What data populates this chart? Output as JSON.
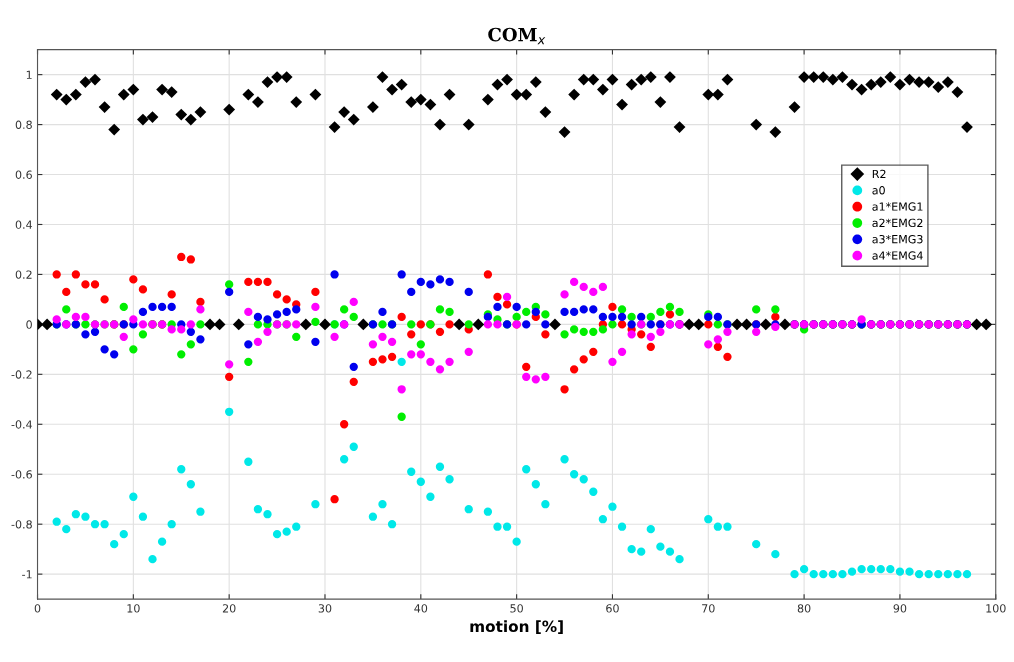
{
  "chart_data": {
    "type": "scatter",
    "title": "COM$_{x}$",
    "xlabel": "motion [%]",
    "x": [
      0,
      1,
      2,
      3,
      4,
      5,
      6,
      7,
      8,
      9,
      10,
      11,
      12,
      13,
      14,
      15,
      16,
      17,
      18,
      19,
      20,
      21,
      22,
      23,
      24,
      25,
      26,
      27,
      28,
      29,
      30,
      31,
      32,
      33,
      34,
      35,
      36,
      37,
      38,
      39,
      40,
      41,
      42,
      43,
      44,
      45,
      46,
      47,
      48,
      49,
      50,
      51,
      52,
      53,
      54,
      55,
      56,
      57,
      58,
      59,
      60,
      61,
      62,
      63,
      64,
      65,
      66,
      67,
      68,
      69,
      70,
      71,
      72,
      73,
      74,
      75,
      76,
      77,
      78,
      79,
      80,
      81,
      82,
      83,
      84,
      85,
      86,
      87,
      88,
      89,
      90,
      91,
      92,
      93,
      94,
      95,
      96,
      97,
      98,
      99
    ],
    "series": [
      {
        "name": "R2",
        "color": "#000000",
        "marker": "diamond",
        "values": [
          0,
          0,
          0.92,
          0.9,
          0.92,
          0.97,
          0.98,
          0.87,
          0.78,
          0.92,
          0.94,
          0.82,
          0.83,
          0.94,
          0.93,
          0.84,
          0.82,
          0.85,
          0,
          0,
          0.86,
          0,
          0.92,
          0.89,
          0.97,
          0.99,
          0.99,
          0.89,
          0,
          0.92,
          0,
          0.79,
          0.85,
          0.82,
          0,
          0.87,
          0.99,
          0.94,
          0.96,
          0.89,
          0.9,
          0.88,
          0.8,
          0.92,
          0,
          0.8,
          0,
          0.9,
          0.96,
          0.98,
          0.92,
          0.92,
          0.97,
          0.85,
          0,
          0.77,
          0.92,
          0.98,
          0.98,
          0.94,
          0.98,
          0.88,
          0.96,
          0.98,
          0.99,
          0.89,
          0.99,
          0.79,
          0,
          0,
          0.92,
          0.92,
          0.98,
          0,
          0,
          0.8,
          0,
          0.77,
          0,
          0.87,
          0.99,
          0.99,
          0.99,
          0.98,
          0.99,
          0.96,
          0.94,
          0.96,
          0.97,
          0.99,
          0.96,
          0.98,
          0.97,
          0.97,
          0.95,
          0.97,
          0.93,
          0.79,
          0,
          0
        ]
      },
      {
        "name": "a0",
        "color": "#00e8e8",
        "marker": "circle",
        "values": [
          null,
          null,
          -0.79,
          -0.82,
          -0.76,
          -0.77,
          -0.8,
          -0.8,
          -0.88,
          -0.84,
          -0.69,
          -0.77,
          -0.94,
          -0.87,
          -0.8,
          -0.58,
          -0.64,
          -0.75,
          null,
          null,
          -0.35,
          null,
          -0.55,
          -0.74,
          -0.76,
          -0.84,
          -0.83,
          -0.81,
          null,
          -0.72,
          null,
          0,
          -0.54,
          -0.49,
          null,
          -0.77,
          -0.72,
          -0.8,
          -0.15,
          -0.59,
          -0.63,
          -0.69,
          -0.57,
          -0.62,
          null,
          -0.74,
          null,
          -0.75,
          -0.81,
          -0.81,
          -0.87,
          -0.58,
          -0.64,
          -0.72,
          null,
          -0.54,
          -0.6,
          -0.62,
          -0.67,
          -0.78,
          -0.73,
          -0.81,
          -0.9,
          -0.91,
          -0.82,
          -0.89,
          -0.91,
          -0.94,
          null,
          null,
          -0.78,
          -0.81,
          -0.81,
          null,
          null,
          -0.88,
          null,
          -0.92,
          null,
          -1.0,
          -0.98,
          -1.0,
          -1.0,
          -1.0,
          -1.0,
          -0.99,
          -0.98,
          -0.98,
          -0.98,
          -0.98,
          -0.99,
          -0.99,
          -1.0,
          -1.0,
          -1.0,
          -1.0,
          -1.0,
          -1.0,
          null,
          null
        ]
      },
      {
        "name": "a1*EMG1",
        "color": "#ff0000",
        "marker": "circle",
        "values": [
          null,
          null,
          0.2,
          0.13,
          0.2,
          0.16,
          0.16,
          0.1,
          0,
          0,
          0.18,
          0.14,
          0,
          0,
          0.12,
          0.27,
          0.26,
          0.09,
          null,
          null,
          -0.21,
          null,
          0.17,
          0.17,
          0.17,
          0.12,
          0.1,
          0.08,
          null,
          0.13,
          null,
          -0.7,
          -0.4,
          -0.23,
          null,
          -0.15,
          -0.14,
          -0.13,
          0.03,
          -0.04,
          0,
          0,
          -0.03,
          0,
          null,
          -0.02,
          null,
          0.2,
          0.11,
          0.08,
          0,
          -0.17,
          0.03,
          -0.04,
          null,
          -0.26,
          -0.18,
          -0.14,
          -0.11,
          0,
          0.07,
          0,
          -0.02,
          -0.04,
          -0.09,
          0,
          0.04,
          0,
          null,
          null,
          0,
          -0.09,
          -0.13,
          null,
          null,
          0,
          null,
          0.03,
          null,
          0,
          0,
          0,
          0,
          0,
          0,
          0,
          0,
          0,
          0,
          0,
          0,
          0,
          0,
          0,
          0,
          0,
          0,
          0,
          null,
          null
        ]
      },
      {
        "name": "a2*EMG2",
        "color": "#00ee00",
        "marker": "circle",
        "values": [
          null,
          null,
          0,
          0.06,
          0,
          0,
          0,
          0,
          0,
          0.07,
          -0.1,
          -0.04,
          0,
          0,
          0,
          -0.12,
          -0.08,
          0,
          null,
          null,
          0.16,
          null,
          -0.15,
          0,
          0,
          0,
          0,
          -0.05,
          null,
          0.01,
          null,
          0,
          0.06,
          0.03,
          null,
          0,
          0,
          0,
          -0.37,
          0,
          -0.08,
          0,
          0.06,
          0.05,
          null,
          0,
          null,
          0.04,
          0.02,
          0,
          0.03,
          0.05,
          0.07,
          0.04,
          null,
          -0.04,
          -0.02,
          -0.03,
          -0.03,
          -0.02,
          0,
          0.06,
          0.03,
          0,
          0.03,
          0.05,
          0.07,
          0.05,
          null,
          null,
          0.04,
          0,
          0,
          null,
          null,
          0.06,
          null,
          0.06,
          null,
          0,
          -0.02,
          0,
          0,
          0,
          0,
          0,
          0,
          0,
          0,
          0,
          0,
          0,
          0,
          0,
          0,
          0,
          0,
          0,
          null,
          null
        ]
      },
      {
        "name": "a3*EMG3",
        "color": "#0000ee",
        "marker": "circle",
        "values": [
          null,
          null,
          0,
          0,
          0,
          -0.04,
          -0.03,
          -0.1,
          -0.12,
          0,
          0,
          0.05,
          0.07,
          0.07,
          0.07,
          0,
          -0.03,
          -0.06,
          null,
          null,
          0.13,
          null,
          -0.08,
          0.03,
          0.02,
          0.04,
          0.05,
          0.06,
          null,
          -0.07,
          null,
          0.2,
          0,
          -0.17,
          null,
          0,
          0.05,
          0,
          0.2,
          0.13,
          0.17,
          0.16,
          0.18,
          0.17,
          null,
          0.13,
          null,
          0.03,
          0.07,
          0,
          0.07,
          0,
          0.05,
          0,
          null,
          0.05,
          0.05,
          0.06,
          0.06,
          0.03,
          0.03,
          0.03,
          0,
          0.03,
          0,
          0,
          0,
          0,
          null,
          null,
          0.03,
          0.03,
          0,
          null,
          null,
          0,
          null,
          0,
          null,
          0,
          0,
          0,
          0,
          0,
          0,
          0,
          0,
          0,
          0,
          0,
          0,
          0,
          0,
          0,
          0,
          0,
          0,
          0,
          null,
          null
        ]
      },
      {
        "name": "a4*EMG4",
        "color": "#ff00ff",
        "marker": "circle",
        "values": [
          null,
          null,
          0.02,
          0,
          0.03,
          0.03,
          0,
          0,
          0,
          -0.05,
          0.02,
          0,
          0,
          0,
          -0.02,
          -0.02,
          0,
          0.06,
          null,
          null,
          -0.16,
          null,
          0.05,
          -0.07,
          -0.03,
          0,
          0,
          0,
          null,
          0.07,
          null,
          -0.05,
          0,
          0.09,
          null,
          -0.08,
          -0.05,
          -0.07,
          -0.26,
          -0.12,
          -0.12,
          -0.15,
          -0.18,
          -0.15,
          null,
          -0.11,
          null,
          0,
          0,
          0.11,
          0,
          -0.21,
          -0.22,
          -0.21,
          null,
          0.12,
          0.17,
          0.15,
          0.13,
          0.15,
          -0.15,
          -0.11,
          -0.04,
          0,
          -0.05,
          -0.03,
          0,
          0,
          null,
          null,
          -0.08,
          -0.06,
          -0.03,
          null,
          null,
          -0.03,
          null,
          -0.01,
          null,
          0,
          0,
          0,
          0,
          0,
          0,
          0,
          0.02,
          0,
          0,
          0,
          0,
          0,
          0,
          0,
          0,
          0,
          0,
          0,
          null,
          null
        ]
      }
    ],
    "xlim": [
      0,
      100
    ],
    "xticks": [
      0,
      10,
      20,
      30,
      40,
      50,
      60,
      70,
      80,
      90,
      100
    ],
    "ylim": [
      -1.1,
      1.1
    ],
    "yticks": [
      -1,
      -0.8,
      -0.6,
      -0.4,
      -0.2,
      0,
      0.2,
      0.4,
      0.6,
      0.8,
      1
    ],
    "grid": true,
    "legend": "right"
  }
}
